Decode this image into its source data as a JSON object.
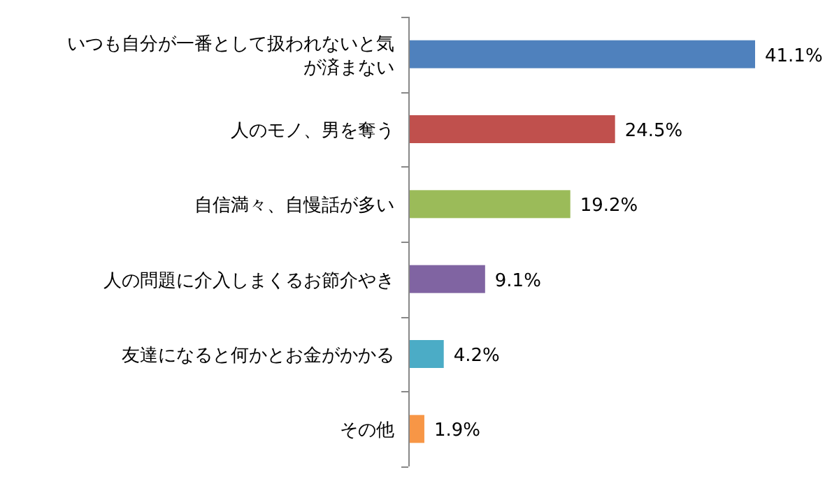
{
  "chart_data": {
    "type": "bar",
    "orientation": "horizontal",
    "data_labels": true,
    "categories": [
      "いつも自分が一番として扱われないと気が済まない",
      "人のモノ、男を奪う",
      "自信満々、自慢話が多い",
      "人の問題に介入しまくるお節介やき",
      "友達になると何かとお金がかかる",
      "その他"
    ],
    "values": [
      41.1,
      24.5,
      19.2,
      9.1,
      4.2,
      1.9
    ],
    "colors": [
      "#4f81bd",
      "#c0504d",
      "#9bbb59",
      "#8064a2",
      "#4bacc6",
      "#f79646"
    ],
    "value_labels": [
      "41.1%",
      "24.5%",
      "19.2%",
      "9.1%",
      "4.2%",
      "1.9%"
    ]
  }
}
